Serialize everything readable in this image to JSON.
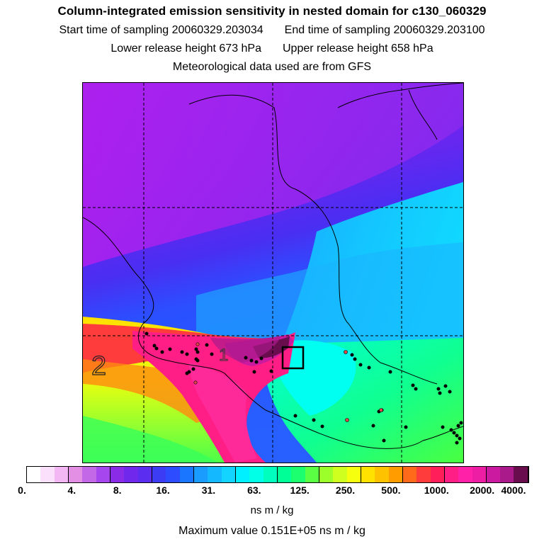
{
  "header": {
    "title": "Column-integrated emission sensitivity in nested domain for c130_060329",
    "start_label": "Start time of sampling 20060329.203034",
    "end_label": "End time of sampling 20060329.203100",
    "lower_label": "Lower release height  673 hPa",
    "upper_label": "Upper release height  658 hPa",
    "met_label": "Meteorological data used are from GFS"
  },
  "map": {
    "labels": {
      "one": "1",
      "two": "2"
    }
  },
  "legend": {
    "ticks": [
      "0.",
      "4.",
      "8.",
      "16.",
      "31.",
      "63.",
      "125.",
      "250.",
      "500.",
      "1000.",
      "2000.",
      "4000."
    ],
    "colors": [
      "#ffffff",
      "#fbe0fb",
      "#f3b8f3",
      "#e38fe3",
      "#c368e6",
      "#a546ee",
      "#8a2be8",
      "#7028ec",
      "#5a2df0",
      "#3d3cf5",
      "#2e4cff",
      "#1a76ff",
      "#1a9cff",
      "#14b8ff",
      "#12d4ff",
      "#00f0ff",
      "#00ffe6",
      "#00ffbe",
      "#00ff96",
      "#1cff6e",
      "#5aff44",
      "#9dff2a",
      "#cfff1e",
      "#f5ff0e",
      "#ffe200",
      "#ffc200",
      "#ff9c00",
      "#ff6a1a",
      "#ff3c3c",
      "#ff1e5a",
      "#ff1e86",
      "#ff22a8",
      "#ee1ea4",
      "#cc1aa0",
      "#aa1a8a",
      "#6a0d4e"
    ],
    "units": "ns m / kg",
    "max_value": "Maximum value  0.151E+05 ns m / kg"
  }
}
